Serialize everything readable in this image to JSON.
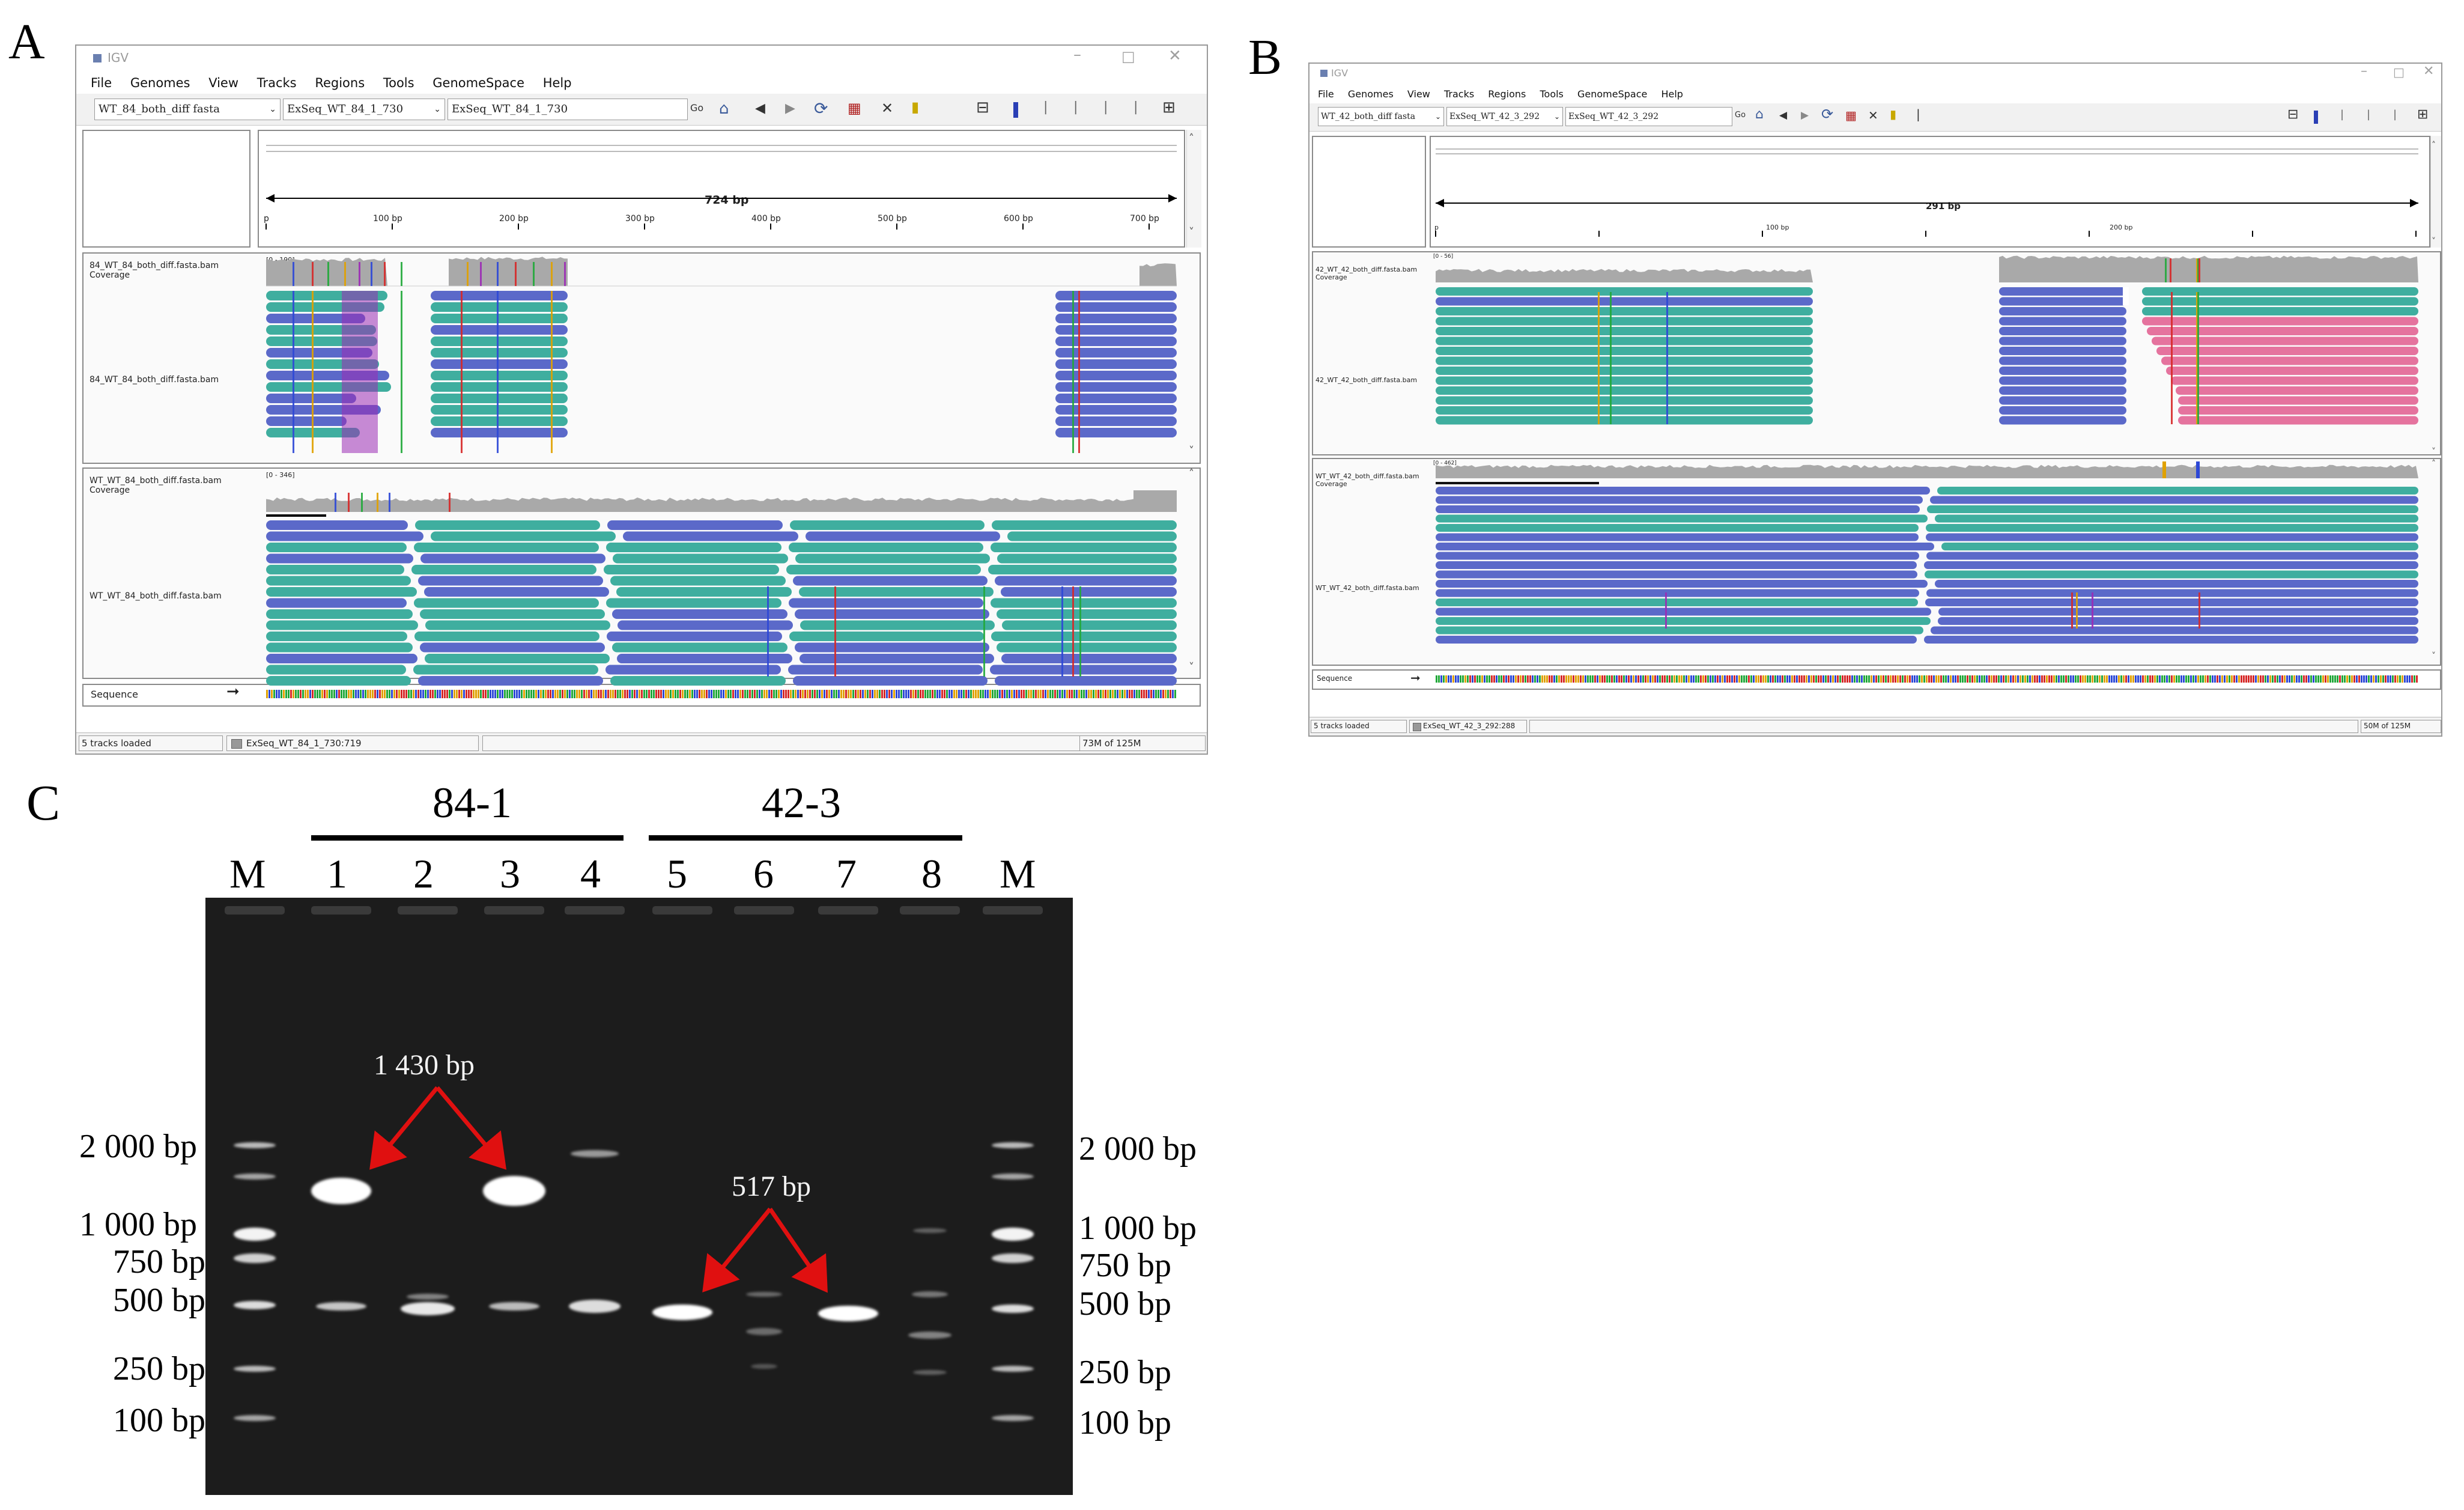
{
  "panels": {
    "a": "A",
    "b": "B",
    "c": "C"
  },
  "window_a": {
    "title": "IGV",
    "menu": [
      "File",
      "Genomes",
      "View",
      "Tracks",
      "Regions",
      "Tools",
      "GenomeSpace",
      "Help"
    ],
    "genome_value": "WT_84_both_diff fasta",
    "chrom_value": "ExSeq_WT_84_1_730",
    "locus_value": "ExSeq_WT_84_1_730",
    "go_label": "Go",
    "ruler_span": "724 bp",
    "ruler_ticks": [
      "p",
      "100 bp",
      "200 bp",
      "300 bp",
      "400 bp",
      "500 bp",
      "600 bp",
      "700 bp"
    ],
    "cov1_name": "84_WT_84_both_diff.fasta.bam Coverage",
    "cov1_range": "[0 - 190]",
    "bam1_name": "84_WT_84_both_diff.fasta.bam",
    "cov2_name": "WT_WT_84_both_diff.fasta.bam Coverage",
    "cov2_range": "[0 - 346]",
    "bam2_name": "WT_WT_84_both_diff.fasta.bam",
    "sequence_label": "Sequence",
    "status_tracks": "5 tracks loaded",
    "status_pos": "ExSeq_WT_84_1_730:719",
    "status_mem": "73M of 125M"
  },
  "window_b": {
    "title": "IGV",
    "menu": [
      "File",
      "Genomes",
      "View",
      "Tracks",
      "Regions",
      "Tools",
      "GenomeSpace",
      "Help"
    ],
    "genome_value": "WT_42_both_diff fasta",
    "chrom_value": "ExSeq_WT_42_3_292",
    "locus_value": "ExSeq_WT_42_3_292",
    "go_label": "Go",
    "ruler_span": "291 bp",
    "ruler_ticks": [
      "p",
      "100 bp",
      "200 bp"
    ],
    "cov1_name": "42_WT_42_both_diff.fasta.bam Coverage",
    "cov1_range": "[0 - 56]",
    "bam1_name": "42_WT_42_both_diff.fasta.bam",
    "cov2_name": "WT_WT_42_both_diff.fasta.bam Coverage",
    "cov2_range": "[0 - 462]",
    "bam2_name": "WT_WT_42_both_diff.fasta.bam",
    "sequence_label": "Sequence",
    "status_tracks": "5 tracks loaded",
    "status_pos": "ExSeq_WT_42_3_292:288",
    "status_mem": "50M of 125M"
  },
  "gel": {
    "group_left": "84-1",
    "group_right": "42-3",
    "lanes": [
      "M",
      "1",
      "2",
      "3",
      "4",
      "5",
      "6",
      "7",
      "8",
      "M"
    ],
    "left_markers": [
      "2 000 bp",
      "1 000 bp",
      "750 bp",
      "500 bp",
      "250 bp",
      "100 bp"
    ],
    "right_markers": [
      "2 000 bp",
      "1 000 bp",
      "750 bp",
      "500 bp",
      "250 bp",
      "100 bp"
    ],
    "annot_1430": "1 430 bp",
    "annot_517": "517 bp"
  },
  "colors": {
    "read_blue": "#5b69c9",
    "read_teal": "#3fae9f",
    "read_pink": "#e5739e",
    "coverage": "#a9a9a9",
    "arrow": "#e01010",
    "gel_bg": "#1c1c1c",
    "band": "#ffffff"
  }
}
